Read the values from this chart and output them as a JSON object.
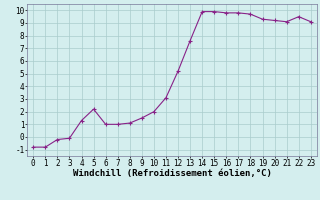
{
  "x": [
    0,
    1,
    2,
    3,
    4,
    5,
    6,
    7,
    8,
    9,
    10,
    11,
    12,
    13,
    14,
    15,
    16,
    17,
    18,
    19,
    20,
    21,
    22,
    23
  ],
  "y": [
    -0.8,
    -0.8,
    -0.2,
    -0.1,
    1.3,
    2.2,
    1.0,
    1.0,
    1.1,
    1.5,
    2.0,
    3.1,
    5.2,
    7.6,
    9.9,
    9.9,
    9.8,
    9.8,
    9.7,
    9.3,
    9.2,
    9.1,
    9.5,
    9.1
  ],
  "line_color": "#882288",
  "marker": "+",
  "marker_size": 3,
  "xlim": [
    -0.5,
    23.5
  ],
  "ylim": [
    -1.5,
    10.5
  ],
  "xticks": [
    0,
    1,
    2,
    3,
    4,
    5,
    6,
    7,
    8,
    9,
    10,
    11,
    12,
    13,
    14,
    15,
    16,
    17,
    18,
    19,
    20,
    21,
    22,
    23
  ],
  "yticks": [
    -1,
    0,
    1,
    2,
    3,
    4,
    5,
    6,
    7,
    8,
    9,
    10
  ],
  "bg_color": "#d4eeee",
  "grid_color": "#aacccc",
  "tick_fontsize": 5.5,
  "xlabel": "Windchill (Refroidissement éolien,°C)",
  "xlabel_fontsize": 6.5
}
